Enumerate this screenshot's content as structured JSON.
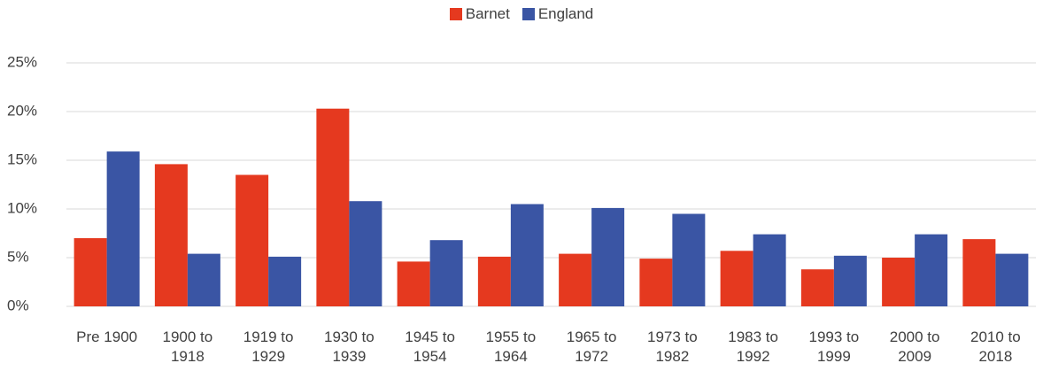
{
  "chart_data": {
    "type": "bar",
    "categories": [
      "Pre 1900",
      "1900 to 1918",
      "1919 to 1929",
      "1930 to 1939",
      "1945 to 1954",
      "1955 to 1964",
      "1965 to 1972",
      "1973 to 1982",
      "1983 to 1992",
      "1993 to 1999",
      "2000 to 2009",
      "2010 to 2018"
    ],
    "series": [
      {
        "name": "Barnet",
        "color": "#e5391f",
        "values": [
          7.0,
          14.6,
          13.5,
          20.3,
          4.6,
          5.1,
          5.4,
          4.9,
          5.7,
          3.8,
          5.0,
          6.9
        ]
      },
      {
        "name": "England",
        "color": "#3a55a4",
        "values": [
          15.9,
          5.4,
          5.1,
          10.8,
          6.8,
          10.5,
          10.1,
          9.5,
          7.4,
          5.2,
          7.4,
          5.4
        ]
      }
    ],
    "ylim": [
      0,
      25
    ],
    "yticks": [
      {
        "value": 0,
        "label": "0%"
      },
      {
        "value": 5,
        "label": "5%"
      },
      {
        "value": 10,
        "label": "10%"
      },
      {
        "value": 15,
        "label": "15%"
      },
      {
        "value": 20,
        "label": "20%"
      },
      {
        "value": 25,
        "label": "25%"
      }
    ],
    "grid": true,
    "legend": "top"
  }
}
